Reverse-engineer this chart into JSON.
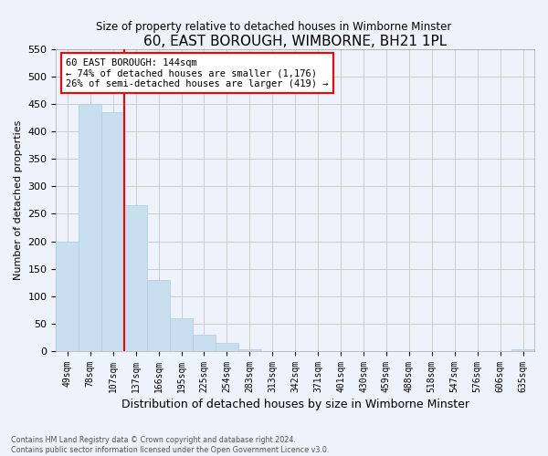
{
  "title": "60, EAST BOROUGH, WIMBORNE, BH21 1PL",
  "subtitle": "Size of property relative to detached houses in Wimborne Minster",
  "xlabel": "Distribution of detached houses by size in Wimborne Minster",
  "ylabel": "Number of detached properties",
  "footnote1": "Contains HM Land Registry data © Crown copyright and database right 2024.",
  "footnote2": "Contains public sector information licensed under the Open Government Licence v3.0.",
  "bar_labels": [
    "49sqm",
    "78sqm",
    "107sqm",
    "137sqm",
    "166sqm",
    "195sqm",
    "225sqm",
    "254sqm",
    "283sqm",
    "313sqm",
    "342sqm",
    "371sqm",
    "401sqm",
    "430sqm",
    "459sqm",
    "488sqm",
    "518sqm",
    "547sqm",
    "576sqm",
    "606sqm",
    "635sqm"
  ],
  "bar_values": [
    200,
    450,
    435,
    265,
    130,
    60,
    30,
    15,
    4,
    0,
    0,
    0,
    0,
    0,
    0,
    0,
    0,
    0,
    0,
    0,
    4
  ],
  "bar_color": "#c8dff0",
  "bar_edge_color": "#b0cce0",
  "vline_color": "red",
  "vline_x": 2.5,
  "annotation_title": "60 EAST BOROUGH: 144sqm",
  "annotation_line1": "← 74% of detached houses are smaller (1,176)",
  "annotation_line2": "26% of semi-detached houses are larger (419) →",
  "annotation_box_color": "white",
  "annotation_box_edge_color": "red",
  "ylim": [
    0,
    550
  ],
  "yticks": [
    0,
    50,
    100,
    150,
    200,
    250,
    300,
    350,
    400,
    450,
    500,
    550
  ],
  "grid_color": "#cccccc",
  "background_color": "#eef2fb"
}
